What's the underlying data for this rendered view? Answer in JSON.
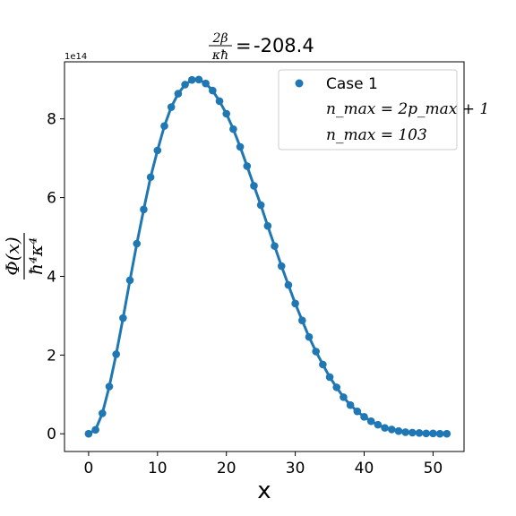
{
  "chart_data": {
    "type": "line",
    "title_value": "-208.4",
    "title_lhs_numerator": "2β",
    "title_lhs_denominator": "κħ",
    "xlabel": "x",
    "ylabel_numerator": "Φ(x)",
    "ylabel_denominator": "ħ⁴κ⁴",
    "y_offset_label": "1e14",
    "xlim": [
      -3.5,
      54.5
    ],
    "ylim": [
      -0.45,
      9.45
    ],
    "y_scale_exponent": 14,
    "xticks": [
      0,
      10,
      20,
      30,
      40,
      50
    ],
    "yticks": [
      0,
      2,
      4,
      6,
      8
    ],
    "grid": false,
    "legend_position": "top-right",
    "color": "#1f77b4",
    "series": [
      {
        "name": "Case 1",
        "x": [
          0,
          1,
          2,
          3,
          4,
          5,
          6,
          7,
          8,
          9,
          10,
          11,
          12,
          13,
          14,
          15,
          16,
          17,
          18,
          19,
          20,
          21,
          22,
          23,
          24,
          25,
          26,
          27,
          28,
          29,
          30,
          31,
          32,
          33,
          34,
          35,
          36,
          37,
          38,
          39,
          40,
          41,
          42,
          43,
          44,
          45,
          46,
          47,
          48,
          49,
          50,
          51,
          52
        ],
        "y": [
          0.0,
          0.1,
          0.52,
          1.2,
          2.02,
          2.94,
          3.9,
          4.83,
          5.7,
          6.52,
          7.2,
          7.82,
          8.3,
          8.64,
          8.87,
          8.99,
          9.0,
          8.9,
          8.72,
          8.45,
          8.13,
          7.74,
          7.29,
          6.8,
          6.3,
          5.81,
          5.28,
          4.77,
          4.26,
          3.78,
          3.31,
          2.88,
          2.46,
          2.09,
          1.76,
          1.44,
          1.18,
          0.93,
          0.73,
          0.57,
          0.43,
          0.32,
          0.23,
          0.15,
          0.11,
          0.07,
          0.04,
          0.03,
          0.02,
          0.01,
          0.01,
          0.0,
          0.0
        ]
      }
    ],
    "legend_lines": [
      "n_max = 2p_max + 1",
      "n_max = 103"
    ]
  }
}
